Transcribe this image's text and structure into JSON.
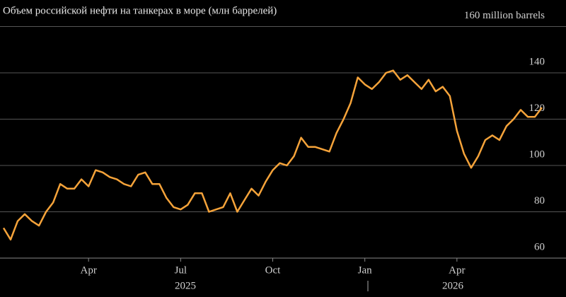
{
  "chart_data": {
    "type": "line",
    "title": "Объем российской нефти на танкерах в море (млн баррелей)",
    "categories": [
      null,
      null,
      null,
      null,
      null,
      null,
      null,
      null,
      null,
      null,
      null,
      null,
      "Apr",
      null,
      null,
      null,
      null,
      null,
      null,
      null,
      null,
      null,
      null,
      null,
      null,
      "Jul",
      null,
      null,
      null,
      null,
      null,
      null,
      null,
      null,
      null,
      null,
      null,
      null,
      "Oct",
      null,
      null,
      null,
      null,
      null,
      null,
      null,
      null,
      null,
      null,
      null,
      null,
      "Jan",
      null,
      null,
      null,
      null,
      null,
      null,
      null,
      null,
      null,
      null,
      null,
      null,
      "Apr",
      null,
      null,
      null,
      null,
      null,
      null,
      null,
      null,
      null,
      null,
      null,
      null
    ],
    "year_labels": [
      "2025",
      "2026"
    ],
    "series": [
      {
        "color": "#f5a33a",
        "values": [
          73,
          68,
          76,
          79,
          76,
          74,
          80,
          84,
          92,
          90,
          90,
          94,
          91,
          98,
          97,
          95,
          94,
          92,
          91,
          96,
          97,
          92,
          92,
          86,
          82,
          81,
          83,
          88,
          88,
          80,
          81,
          82,
          88,
          80,
          85,
          90,
          87,
          93,
          98,
          101,
          100,
          104,
          112,
          108,
          108,
          107,
          106,
          114,
          120,
          127,
          138,
          135,
          133,
          136,
          140,
          141,
          137,
          139,
          136,
          133,
          137,
          132,
          134,
          130,
          115,
          105,
          99,
          104,
          111,
          113,
          111,
          117,
          120,
          124,
          121,
          121,
          125
        ]
      }
    ],
    "ylim": [
      60,
      160
    ],
    "yticks": [
      60,
      80,
      100,
      120,
      140,
      {
        "value": 160,
        "label": "160 million barrels"
      }
    ],
    "grid": true
  }
}
